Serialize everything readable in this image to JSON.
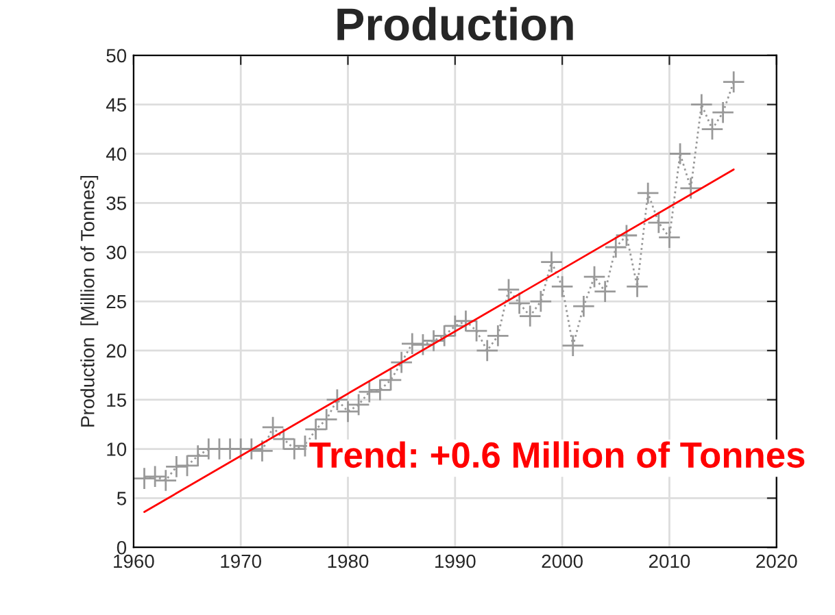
{
  "chart_data": {
    "type": "line",
    "title": "Production",
    "ylabel": "Production  [Million of Tonnes]",
    "xlim": [
      1960,
      2020
    ],
    "xticks": [
      1960,
      1970,
      1980,
      1990,
      2000,
      2010,
      2020
    ],
    "ylim": [
      0,
      50
    ],
    "yticks": [
      0,
      5,
      10,
      15,
      20,
      25,
      30,
      35,
      40,
      45,
      50
    ],
    "grid": true,
    "series": [
      {
        "color": "#999999",
        "marker": "cross",
        "line_style": "dotted",
        "x": [
          1961,
          1962,
          1963,
          1964,
          1965,
          1966,
          1967,
          1968,
          1969,
          1970,
          1971,
          1972,
          1973,
          1974,
          1975,
          1976,
          1977,
          1978,
          1979,
          1980,
          1981,
          1982,
          1983,
          1984,
          1985,
          1986,
          1987,
          1988,
          1989,
          1990,
          1991,
          1992,
          1993,
          1994,
          1995,
          1996,
          1997,
          1998,
          1999,
          2000,
          2001,
          2002,
          2003,
          2004,
          2005,
          2006,
          2007,
          2008,
          2009,
          2010,
          2011,
          2012,
          2013,
          2014,
          2015,
          2016
        ],
        "values": [
          7,
          7.2,
          6.8,
          8.2,
          8.3,
          9.3,
          10,
          10,
          10,
          10,
          10,
          9.8,
          12.2,
          11,
          10,
          10.3,
          12,
          13,
          15,
          13.8,
          14.5,
          15.8,
          16,
          17,
          18.8,
          20.7,
          20.6,
          21,
          21.5,
          22.5,
          23,
          22,
          20,
          21.5,
          26.2,
          24.8,
          23.5,
          25,
          29,
          26.5,
          20.5,
          24.5,
          27.5,
          26,
          30.5,
          31.7,
          26.5,
          36,
          33,
          31.5,
          40,
          36.5,
          45,
          42.5,
          44.2,
          47.3
        ]
      },
      {
        "color": "#ff0000",
        "marker": "none",
        "line_style": "solid",
        "x": [
          1961,
          2016
        ],
        "values": [
          3.6,
          38.4
        ]
      }
    ],
    "annotations": [
      "Trend: +0.6 Million of Tonnes"
    ]
  }
}
